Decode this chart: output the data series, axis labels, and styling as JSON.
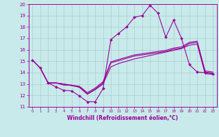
{
  "xlabel": "Windchill (Refroidissement éolien,°C)",
  "bg_color": "#c8eaea",
  "grid_color": "#aacccc",
  "line_color": "#990099",
  "xlim": [
    -0.5,
    23.5
  ],
  "ylim": [
    11,
    20
  ],
  "xticks": [
    0,
    1,
    2,
    3,
    4,
    5,
    6,
    7,
    8,
    9,
    10,
    11,
    12,
    13,
    14,
    15,
    16,
    17,
    18,
    19,
    20,
    21,
    22,
    23
  ],
  "yticks": [
    11,
    12,
    13,
    14,
    15,
    16,
    17,
    18,
    19,
    20
  ],
  "line1_x": [
    0,
    1,
    2,
    3,
    4,
    5,
    6,
    7,
    8,
    9,
    10,
    11,
    12,
    13,
    14,
    15,
    16,
    17,
    18,
    19,
    20,
    21,
    22,
    23
  ],
  "line1_y": [
    15.1,
    14.4,
    13.1,
    12.75,
    12.45,
    12.4,
    11.95,
    11.45,
    11.45,
    12.6,
    16.9,
    17.45,
    18.0,
    18.85,
    19.0,
    19.9,
    19.2,
    17.1,
    18.6,
    17.0,
    14.7,
    14.05,
    14.0,
    13.9
  ],
  "line2_x": [
    0,
    1,
    2,
    3,
    4,
    5,
    6,
    7,
    8,
    9,
    10,
    11,
    12,
    13,
    14,
    15,
    16,
    17,
    18,
    19,
    20,
    21,
    22,
    23
  ],
  "line2_y": [
    15.1,
    14.4,
    13.1,
    13.1,
    13.0,
    12.85,
    12.75,
    12.15,
    12.55,
    13.1,
    14.85,
    15.05,
    15.25,
    15.45,
    15.55,
    15.65,
    15.75,
    15.85,
    16.05,
    16.15,
    16.55,
    16.65,
    14.05,
    13.95
  ],
  "line3_x": [
    0,
    1,
    2,
    3,
    4,
    5,
    6,
    7,
    8,
    9,
    10,
    11,
    12,
    13,
    14,
    15,
    16,
    17,
    18,
    19,
    20,
    21,
    22,
    23
  ],
  "line3_y": [
    15.1,
    14.4,
    13.1,
    13.1,
    13.0,
    12.9,
    12.8,
    12.25,
    12.65,
    13.2,
    14.95,
    15.15,
    15.35,
    15.55,
    15.65,
    15.75,
    15.85,
    15.95,
    16.15,
    16.25,
    16.65,
    16.75,
    14.15,
    14.05
  ],
  "line4_x": [
    0,
    1,
    2,
    3,
    4,
    5,
    6,
    7,
    8,
    9,
    10,
    11,
    12,
    13,
    14,
    15,
    16,
    17,
    18,
    19,
    20,
    21,
    22,
    23
  ],
  "line4_y": [
    15.1,
    14.4,
    13.1,
    13.1,
    12.9,
    12.9,
    12.7,
    12.1,
    12.5,
    13.0,
    14.5,
    14.8,
    15.0,
    15.2,
    15.35,
    15.5,
    15.65,
    15.8,
    15.95,
    16.1,
    16.4,
    16.5,
    13.9,
    13.85
  ]
}
